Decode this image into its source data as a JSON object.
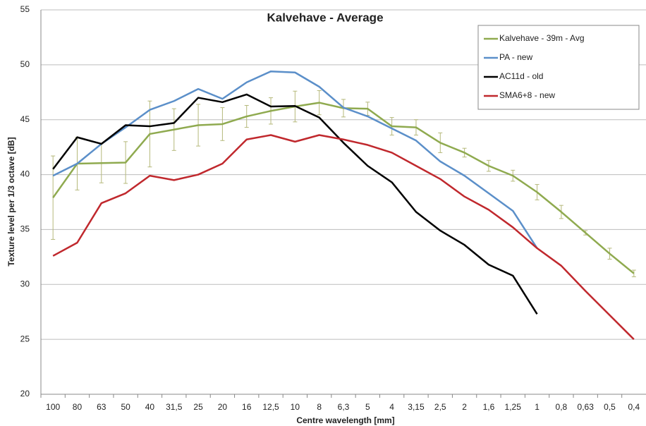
{
  "chart_data": {
    "type": "line",
    "title": "Kalvehave - Average",
    "x_label": "Centre wavelength [mm]",
    "y_label": "Texture level per 1/3 octave [dB]",
    "categories": [
      "100",
      "80",
      "63",
      "50",
      "40",
      "31,5",
      "25",
      "20",
      "16",
      "12,5",
      "10",
      "8",
      "6,3",
      "5",
      "4",
      "3,15",
      "2,5",
      "2",
      "1,6",
      "1,25",
      "1",
      "0,8",
      "0,63",
      "0,5",
      "0,4"
    ],
    "ylim": [
      20,
      55
    ],
    "yticks": [
      20,
      25,
      30,
      35,
      40,
      45,
      50,
      55
    ],
    "grid": true,
    "legend": "top-right",
    "series": [
      {
        "name": "Kalvehave - 39m - Avg",
        "color": "#8faa4f",
        "values": [
          37.9,
          41.0,
          41.05,
          41.1,
          43.7,
          44.1,
          44.5,
          44.6,
          45.3,
          45.8,
          46.2,
          46.55,
          46.05,
          46.0,
          44.4,
          44.3,
          42.9,
          42.0,
          40.8,
          39.9,
          38.4,
          36.6,
          34.7,
          32.8,
          31.0
        ],
        "errors": [
          3.8,
          2.4,
          1.8,
          1.9,
          3.0,
          1.9,
          1.9,
          1.5,
          1.0,
          1.2,
          1.4,
          1.1,
          0.8,
          0.6,
          0.8,
          0.7,
          0.9,
          0.4,
          0.5,
          0.5,
          0.7,
          0.6,
          0.2,
          0.5,
          0.3
        ]
      },
      {
        "name": "PA - new",
        "color": "#5b8fc9",
        "values": [
          39.9,
          41.0,
          42.8,
          44.3,
          45.9,
          46.7,
          47.8,
          46.9,
          48.4,
          49.4,
          49.3,
          48.0,
          46.1,
          45.3,
          44.2,
          43.1,
          41.2,
          39.9,
          38.3,
          36.7,
          33.3,
          null,
          null,
          null,
          null
        ]
      },
      {
        "name": "AC11d - old",
        "color": "#000000",
        "values": [
          40.5,
          43.4,
          42.8,
          44.5,
          44.4,
          44.7,
          47.0,
          46.6,
          47.3,
          46.2,
          46.25,
          45.2,
          42.9,
          40.8,
          39.3,
          36.6,
          34.9,
          33.6,
          31.8,
          30.8,
          27.3,
          null,
          null,
          null,
          null
        ]
      },
      {
        "name": "SMA6+8 - new",
        "color": "#c0282d",
        "values": [
          32.6,
          33.8,
          37.4,
          38.3,
          39.9,
          39.5,
          40.0,
          41.0,
          43.2,
          43.6,
          43.0,
          43.6,
          43.2,
          42.7,
          42.0,
          40.8,
          39.6,
          38.0,
          36.8,
          35.2,
          33.3,
          31.7,
          29.4,
          27.2,
          25.0
        ]
      }
    ]
  }
}
